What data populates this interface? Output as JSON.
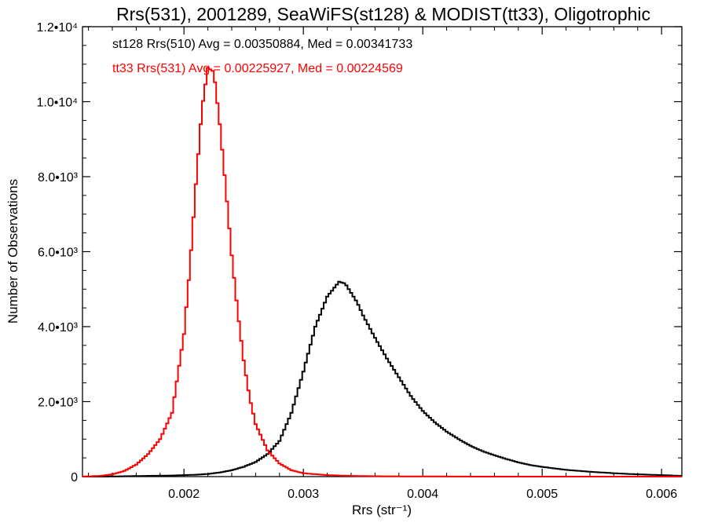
{
  "chart_data": {
    "type": "histogram",
    "title": "Rrs(531), 2001289, SeaWiFS(st128) & MODIST(tt33), Oligotrophic",
    "xlabel": "Rrs (str⁻¹)",
    "ylabel": "Number of Observations",
    "xlim": [
      0.00115,
      0.00617
    ],
    "ylim": [
      0,
      12000
    ],
    "x_ticks": [
      {
        "value": 0.002,
        "label": "0.002"
      },
      {
        "value": 0.003,
        "label": "0.003"
      },
      {
        "value": 0.004,
        "label": "0.004"
      },
      {
        "value": 0.005,
        "label": "0.005"
      },
      {
        "value": 0.006,
        "label": "0.006"
      }
    ],
    "y_ticks": [
      {
        "value": 0,
        "label": "0"
      },
      {
        "value": 2000,
        "label": "2.0•10³"
      },
      {
        "value": 4000,
        "label": "4.0•10³"
      },
      {
        "value": 6000,
        "label": "6.0•10³"
      },
      {
        "value": 8000,
        "label": "8.0•10³"
      },
      {
        "value": 10000,
        "label": "1.0•10⁴"
      },
      {
        "value": 12000,
        "label": "1.2•10⁴"
      }
    ],
    "grid": false,
    "series": [
      {
        "name": "st128 Rrs(510)",
        "color": "#000000",
        "annotation": "st128 Rrs(510) Avg = 0.00350884, Med = 0.00341733",
        "x": [
          0.00115,
          0.0013,
          0.0015,
          0.0017,
          0.0019,
          0.0021,
          0.0022,
          0.0023,
          0.0024,
          0.0025,
          0.0026,
          0.0027,
          0.0028,
          0.0029,
          0.003,
          0.0031,
          0.0032,
          0.00325,
          0.0033,
          0.00335,
          0.0034,
          0.00345,
          0.0035,
          0.0036,
          0.0037,
          0.0038,
          0.0039,
          0.004,
          0.0041,
          0.0042,
          0.0043,
          0.0044,
          0.0045,
          0.0046,
          0.0047,
          0.0048,
          0.0049,
          0.005,
          0.0052,
          0.0054,
          0.0056,
          0.0058,
          0.006,
          0.00617
        ],
        "y": [
          0,
          0,
          10,
          20,
          30,
          50,
          70,
          110,
          170,
          260,
          390,
          600,
          950,
          1700,
          2800,
          4000,
          4800,
          5000,
          5200,
          5150,
          4900,
          4650,
          4300,
          3700,
          3150,
          2650,
          2150,
          1750,
          1450,
          1200,
          1000,
          820,
          680,
          570,
          470,
          380,
          310,
          260,
          180,
          130,
          90,
          60,
          40,
          20
        ]
      },
      {
        "name": "tt33 Rrs(531)",
        "color": "#ff0000",
        "annotation": "tt33 Rrs(531) Avg = 0.00225927, Med = 0.00224569",
        "x": [
          0.00115,
          0.0013,
          0.0014,
          0.0015,
          0.0016,
          0.0017,
          0.0018,
          0.0019,
          0.002,
          0.00205,
          0.0021,
          0.00215,
          0.0022,
          0.00225,
          0.0023,
          0.00235,
          0.0024,
          0.00245,
          0.0025,
          0.00255,
          0.0026,
          0.0027,
          0.0028,
          0.0029,
          0.003,
          0.0032,
          0.0034,
          0.0036,
          0.004,
          0.0045,
          0.005,
          0.0055,
          0.006,
          0.00617
        ],
        "y": [
          0,
          20,
          60,
          150,
          320,
          600,
          1000,
          1700,
          3800,
          5600,
          7800,
          9800,
          10900,
          10800,
          9400,
          7700,
          5900,
          4400,
          3100,
          2100,
          1400,
          700,
          350,
          170,
          90,
          40,
          20,
          10,
          5,
          0,
          0,
          0,
          0,
          0
        ]
      }
    ]
  }
}
